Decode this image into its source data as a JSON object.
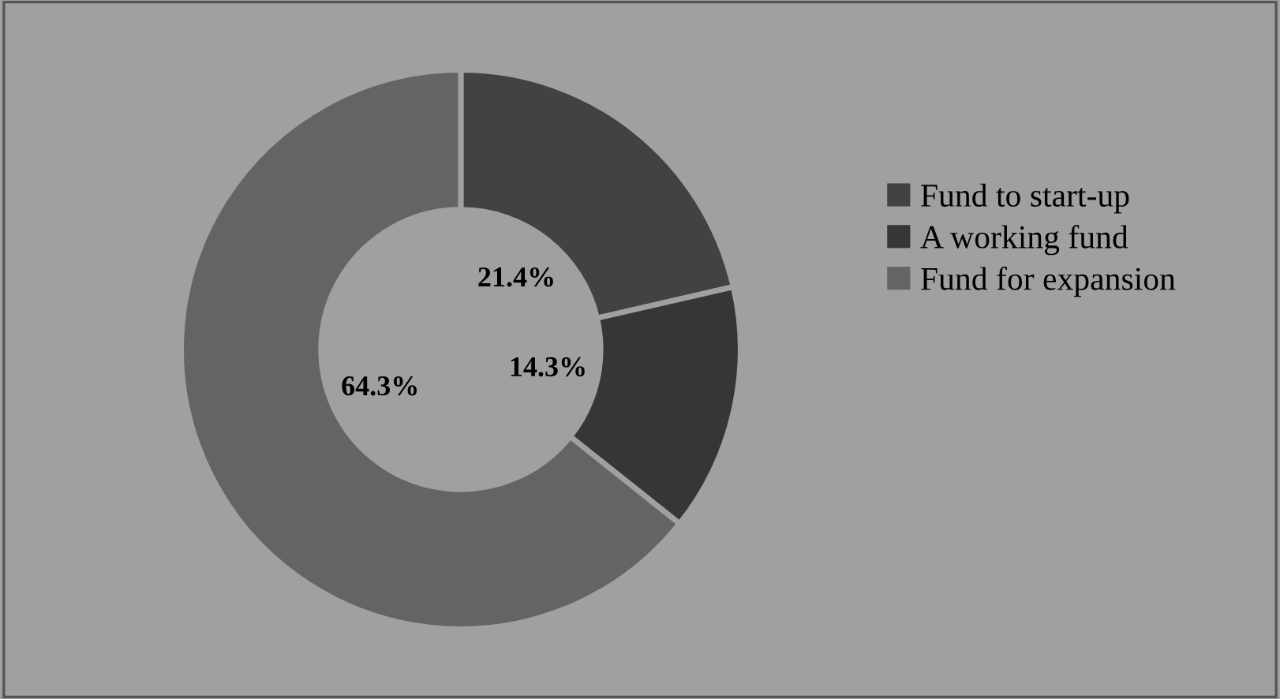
{
  "chart_data": {
    "type": "donut",
    "categories": [
      "Fund to start-up",
      "A working fund",
      "Fund for expansion"
    ],
    "values": [
      21.4,
      14.3,
      64.3
    ],
    "value_labels": [
      "21.4%",
      "14.3%",
      "64.3%"
    ],
    "colors": [
      "#424242",
      "#363636",
      "#646464"
    ],
    "legend": "right"
  }
}
